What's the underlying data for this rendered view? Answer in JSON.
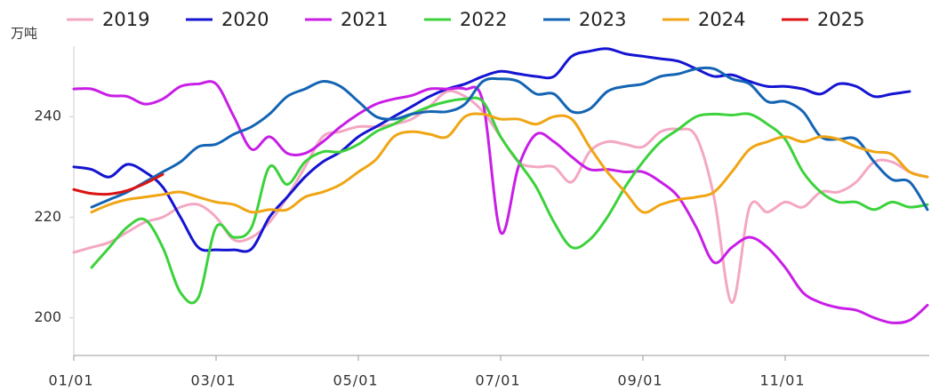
{
  "chart_data": {
    "type": "line",
    "y_label": "万吨",
    "categories": [
      "01/01",
      null,
      null,
      null,
      null,
      null,
      null,
      null,
      "03/01",
      null,
      null,
      null,
      null,
      null,
      null,
      null,
      "05/01",
      null,
      null,
      null,
      null,
      null,
      null,
      null,
      "07/01",
      null,
      null,
      null,
      null,
      null,
      null,
      null,
      "09/01",
      null,
      null,
      null,
      null,
      null,
      null,
      null,
      "11/01",
      null,
      null,
      null,
      null,
      null,
      null,
      null,
      null
    ],
    "ylim": [
      192.5,
      254
    ],
    "yticks": [
      200,
      220,
      240
    ],
    "grid": false,
    "legend": "top",
    "series": [
      {
        "name": "2019",
        "color": "#f4a7c3",
        "values": [
          213,
          214,
          215,
          217,
          219,
          220,
          222,
          222.5,
          220,
          215.5,
          216,
          219,
          224,
          230,
          236,
          237,
          238,
          238,
          238.5,
          239.5,
          242,
          245,
          244,
          241,
          236,
          231,
          230,
          230,
          227,
          233,
          235,
          234.5,
          234,
          237,
          237.5,
          236,
          224,
          203,
          222,
          221,
          223,
          222,
          225,
          225,
          227,
          231,
          231,
          229,
          228
        ]
      },
      {
        "name": "2020",
        "color": "#1414d2",
        "values": [
          230,
          229.5,
          228,
          230.5,
          229,
          226,
          220,
          214,
          213.5,
          213.5,
          213.7,
          220,
          224,
          228,
          231,
          233,
          236,
          238,
          240,
          242,
          244,
          245.5,
          246.5,
          248,
          249,
          248.5,
          248,
          248,
          252,
          253,
          253.5,
          252.5,
          252,
          251.5,
          251,
          249.5,
          248,
          248.3,
          247,
          246,
          246,
          245.5,
          244.5,
          246.5,
          246,
          244,
          244.5,
          245,
          null
        ]
      },
      {
        "name": "2021",
        "color": "#c81ee6",
        "values": [
          245.5,
          245.5,
          244.2,
          244,
          242.5,
          243.5,
          246,
          246.5,
          246.5,
          240,
          233.5,
          236,
          232.7,
          232.7,
          235,
          238,
          240.5,
          242.5,
          243.5,
          244.2,
          245.5,
          245.5,
          245.5,
          243,
          217,
          230,
          236.5,
          235,
          232,
          229.5,
          229.5,
          229,
          229,
          227,
          224,
          218,
          211,
          214,
          216,
          214,
          210,
          205,
          203,
          202,
          201.5,
          200,
          199,
          199.5,
          202.5
        ]
      },
      {
        "name": "2022",
        "color": "#3cd23c",
        "values": [
          null,
          210,
          214,
          218,
          219.5,
          214,
          205,
          204,
          218,
          216,
          218,
          230,
          226.5,
          231,
          233,
          233,
          234.5,
          237,
          238.5,
          240.5,
          242,
          243,
          243.5,
          243,
          236,
          231,
          226,
          219,
          214,
          215.5,
          220,
          226,
          231,
          235,
          237.5,
          240,
          240.5,
          240.3,
          240.5,
          238.5,
          235.5,
          229,
          225,
          223,
          223,
          221.5,
          223,
          222,
          222.5
        ]
      },
      {
        "name": "2023",
        "color": "#1464b4",
        "values": [
          null,
          222,
          223.5,
          225,
          227,
          229,
          231,
          234,
          234.5,
          236.5,
          238,
          240.5,
          244,
          245.5,
          247,
          246,
          243,
          240,
          239.5,
          240.5,
          241,
          241,
          242.5,
          247,
          247.5,
          247,
          244.5,
          244.5,
          241,
          241.5,
          245,
          246,
          246.5,
          248,
          248.5,
          249.5,
          249.5,
          247.5,
          246.5,
          243,
          243,
          241,
          236,
          235.5,
          235.5,
          231,
          227.5,
          227,
          221.5
        ]
      },
      {
        "name": "2024",
        "color": "#f0a514",
        "values": [
          null,
          221,
          222.5,
          223.5,
          224,
          224.5,
          225,
          224,
          223,
          222.5,
          221,
          221.5,
          221.5,
          224,
          225,
          226.5,
          229,
          231.5,
          236,
          237,
          236.5,
          236,
          240,
          240.5,
          239.5,
          239.5,
          238.5,
          240,
          239.5,
          234,
          229,
          225,
          221,
          222.5,
          223.5,
          224,
          225,
          229,
          233.5,
          235,
          236,
          235,
          236,
          235.5,
          234,
          233,
          232.5,
          229,
          228
        ]
      },
      {
        "name": "2025",
        "color": "#dc1414",
        "values": [
          225.5,
          224.7,
          224.6,
          225.3,
          226.7,
          228.5,
          null,
          null,
          null,
          null,
          null,
          null,
          null,
          null,
          null,
          null,
          null,
          null,
          null,
          null,
          null,
          null,
          null,
          null,
          null,
          null,
          null,
          null,
          null,
          null,
          null,
          null,
          null,
          null,
          null,
          null,
          null,
          null,
          null,
          null,
          null,
          null,
          null,
          null,
          null,
          null,
          null,
          null,
          null
        ]
      }
    ]
  }
}
